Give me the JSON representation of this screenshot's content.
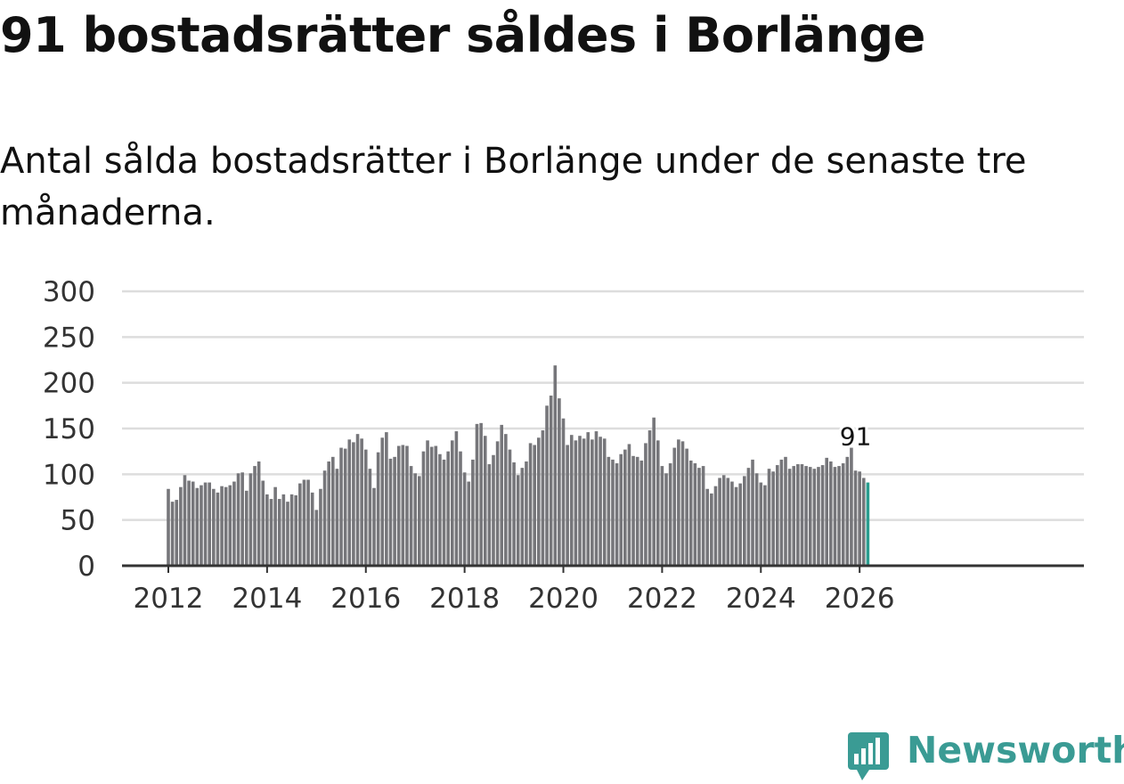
{
  "title": "91 bostadsrätter såldes i Borlänge",
  "subtitle": "Antal sålda bostadsrätter i Borlänge under de senaste tre månaderna.",
  "brand": {
    "name": "Newsworthy",
    "color": "#3a9b94",
    "icon": "bar-chart-speech-bubble-icon"
  },
  "colors": {
    "bar": "#76767a",
    "highlight": "#2a9d8f",
    "grid": "#dddddd",
    "axis": "#333333"
  },
  "chart_data": {
    "type": "bar",
    "title": "91 bostadsrätter såldes i Borlänge",
    "xlabel": "",
    "ylabel": "",
    "ylim": [
      0,
      300
    ],
    "yticks": [
      "0",
      "50",
      "100",
      "150",
      "200",
      "250",
      "300"
    ],
    "xticks": [
      "2012",
      "2014",
      "2016",
      "2018",
      "2020",
      "2022",
      "2024",
      "2026"
    ],
    "start": "2012-01",
    "series": [
      {
        "name": "Antal sålda bostadsrätter",
        "values": [
          84,
          70,
          72,
          86,
          99,
          93,
          92,
          85,
          88,
          91,
          91,
          84,
          80,
          87,
          86,
          88,
          92,
          101,
          102,
          82,
          101,
          109,
          114,
          93,
          78,
          73,
          86,
          73,
          78,
          70,
          78,
          77,
          90,
          94,
          94,
          80,
          61,
          84,
          104,
          114,
          119,
          106,
          129,
          128,
          138,
          135,
          144,
          139,
          127,
          106,
          85,
          124,
          140,
          146,
          117,
          119,
          131,
          132,
          131,
          109,
          101,
          98,
          125,
          137,
          130,
          131,
          122,
          116,
          125,
          137,
          147,
          125,
          102,
          92,
          116,
          155,
          156,
          142,
          111,
          121,
          136,
          154,
          144,
          127,
          113,
          99,
          107,
          114,
          134,
          132,
          140,
          148,
          175,
          186,
          219,
          183,
          161,
          132,
          143,
          137,
          142,
          139,
          146,
          138,
          147,
          141,
          139,
          119,
          116,
          112,
          122,
          127,
          133,
          120,
          119,
          115,
          134,
          148,
          162,
          137,
          109,
          101,
          112,
          129,
          138,
          136,
          128,
          115,
          112,
          107,
          109,
          84,
          79,
          87,
          96,
          99,
          96,
          92,
          86,
          90,
          98,
          107,
          116,
          101,
          91,
          88,
          106,
          103,
          110,
          116,
          119,
          106,
          109,
          111,
          111,
          109,
          108,
          106,
          108,
          110,
          118,
          114,
          108,
          109,
          112,
          119,
          129,
          104,
          103,
          96,
          91
        ]
      }
    ],
    "last_value_label": "91"
  }
}
